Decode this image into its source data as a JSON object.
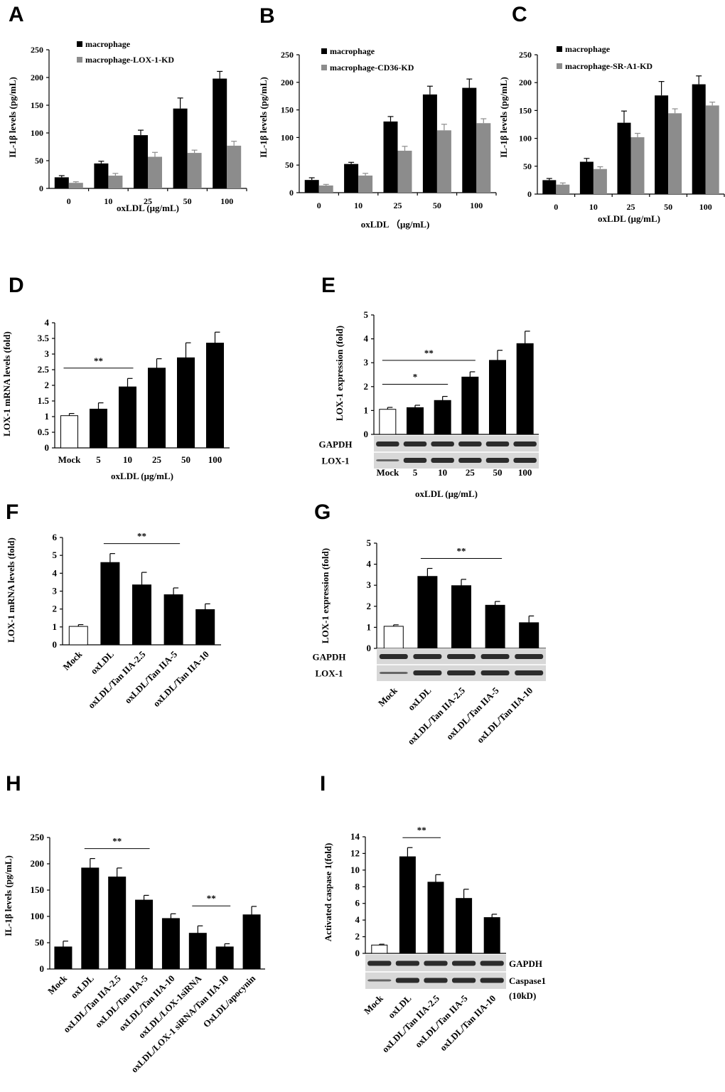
{
  "colors": {
    "black": "#000000",
    "gray": "#8c8c8c",
    "white": "#ffffff",
    "blot_bg": "#d8d8d8",
    "band": "#1a1a1a"
  },
  "chart_data": [
    {
      "id": "A",
      "type": "bar",
      "panel_label": "A",
      "ylabel": "IL-1β levels (pg/mL)",
      "xlabel": "oxLDL (μg/mL)",
      "categories": [
        "0",
        "10",
        "25",
        "50",
        "100"
      ],
      "ylim": [
        0,
        250
      ],
      "yticks": [
        "0",
        "50",
        "100",
        "150",
        "200",
        "250"
      ],
      "series": [
        {
          "name": "macrophage",
          "color": "#000000",
          "values": [
            20,
            45,
            96,
            144,
            198
          ],
          "errors": [
            3,
            4,
            9,
            19,
            13
          ]
        },
        {
          "name": "macrophage-LOX-1-KD",
          "color": "#8c8c8c",
          "values": [
            10,
            23,
            57,
            64,
            77
          ],
          "errors": [
            2,
            4,
            8,
            5,
            8
          ]
        }
      ]
    },
    {
      "id": "B",
      "type": "bar",
      "panel_label": "B",
      "ylabel": "IL-1β levels (pg/mL)",
      "xlabel": "oxLDL （μg/mL)",
      "categories": [
        "0",
        "10",
        "25",
        "50",
        "100"
      ],
      "ylim": [
        0,
        250
      ],
      "yticks": [
        "0",
        "50",
        "100",
        "150",
        "200",
        "250"
      ],
      "series": [
        {
          "name": "macrophage",
          "color": "#000000",
          "values": [
            23,
            52,
            129,
            178,
            190
          ],
          "errors": [
            4,
            3,
            9,
            15,
            16
          ]
        },
        {
          "name": "macrophage-CD36-KD",
          "color": "#8c8c8c",
          "values": [
            13,
            31,
            76,
            113,
            126
          ],
          "errors": [
            2,
            4,
            8,
            11,
            8
          ]
        }
      ]
    },
    {
      "id": "C",
      "type": "bar",
      "panel_label": "C",
      "ylabel": "IL-1β levels (pg/mL)",
      "xlabel": "oxLDL (μg/mL)",
      "categories": [
        "0",
        "10",
        "25",
        "50",
        "100"
      ],
      "ylim": [
        0,
        250
      ],
      "yticks": [
        "0",
        "50",
        "100",
        "150",
        "200",
        "250"
      ],
      "series": [
        {
          "name": "macrophage",
          "color": "#000000",
          "values": [
            25,
            58,
            128,
            177,
            197
          ],
          "errors": [
            3,
            6,
            21,
            25,
            15
          ]
        },
        {
          "name": "macrophage-SR-A1-KD",
          "color": "#8c8c8c",
          "values": [
            17,
            45,
            102,
            145,
            159
          ],
          "errors": [
            3,
            4,
            7,
            8,
            6
          ]
        }
      ]
    },
    {
      "id": "D",
      "type": "bar",
      "panel_label": "D",
      "ylabel": "LOX-1 mRNA levels (fold)",
      "xlabel": "oxLDL (μg/mL)",
      "categories": [
        "Mock",
        "5",
        "10",
        "25",
        "50",
        "100"
      ],
      "ylim": [
        0,
        4
      ],
      "yticks": [
        "0",
        "0.5",
        "1",
        "1.5",
        "2",
        "2.5",
        "3",
        "3.5",
        "4"
      ],
      "values": [
        1.03,
        1.24,
        1.95,
        2.55,
        2.88,
        3.35
      ],
      "errors": [
        0.07,
        0.2,
        0.27,
        0.3,
        0.48,
        0.35
      ],
      "open_first": true,
      "significance": [
        {
          "from": 0,
          "to": 2,
          "label": "**"
        }
      ]
    },
    {
      "id": "E",
      "type": "bar",
      "panel_label": "E",
      "ylabel": "LOX-1 expression (fold)",
      "xlabel": "oxLDL (μg/mL)",
      "categories": [
        "Mock",
        "5",
        "10",
        "25",
        "50",
        "100"
      ],
      "ylim": [
        0,
        5
      ],
      "yticks": [
        "0",
        "1",
        "2",
        "3",
        "4",
        "5"
      ],
      "values": [
        1.05,
        1.12,
        1.42,
        2.4,
        3.1,
        3.8
      ],
      "errors": [
        0.08,
        0.1,
        0.17,
        0.22,
        0.42,
        0.52
      ],
      "open_first": true,
      "significance": [
        {
          "from": 0,
          "to": 2,
          "label": "*"
        },
        {
          "from": 0,
          "to": 3,
          "label": "**"
        }
      ],
      "blots": [
        "GAPDH",
        "LOX-1"
      ]
    },
    {
      "id": "F",
      "type": "bar",
      "panel_label": "F",
      "ylabel": "LOX-1 mRNA levels (fold)",
      "categories": [
        "Mock",
        "oxLDL",
        "oxLDL/Tan IIA-2.5",
        "oxLDL/Tan IIA-5",
        "oxLDL/Tan IIA-10"
      ],
      "ylim": [
        0,
        6
      ],
      "yticks": [
        "0",
        "1",
        "2",
        "3",
        "4",
        "5",
        "6"
      ],
      "values": [
        1.03,
        4.6,
        3.35,
        2.8,
        1.97
      ],
      "errors": [
        0.1,
        0.5,
        0.7,
        0.38,
        0.32
      ],
      "open_first": true,
      "significance": [
        {
          "from": 1,
          "to": 3,
          "label": "**"
        }
      ]
    },
    {
      "id": "G",
      "type": "bar",
      "panel_label": "G",
      "ylabel": "LOX-1 expression (fold)",
      "categories": [
        "Mock",
        "oxLDL",
        "oxLDL/Tan IIA-2.5",
        "oxLDL/Tan IIA-5",
        "oxLDL/Tan IIA-10"
      ],
      "ylim": [
        0,
        5
      ],
      "yticks": [
        "0",
        "1",
        "2",
        "3",
        "4",
        "5"
      ],
      "values": [
        1.05,
        3.42,
        2.98,
        2.05,
        1.22
      ],
      "errors": [
        0.07,
        0.38,
        0.3,
        0.18,
        0.32
      ],
      "open_first": true,
      "significance": [
        {
          "from": 1,
          "to": 3,
          "label": "**"
        }
      ],
      "blots": [
        "GAPDH",
        "LOX-1"
      ]
    },
    {
      "id": "H",
      "type": "bar",
      "panel_label": "H",
      "ylabel": "IL-1β levels (pg/mL)",
      "categories": [
        "Mock",
        "oxLDL",
        "oxLDL/Tan IIA-2.5",
        "oxLDL/Tan IIA-5",
        "oxLDL/Tan IIA-10",
        "oxLDL/LOX-1siRNA",
        "oxLDL/LOX-1 siRNA/Tan IIA-10",
        "OxLDL/apocynin"
      ],
      "ylim": [
        0,
        250
      ],
      "yticks": [
        "0",
        "50",
        "100",
        "150",
        "200",
        "250"
      ],
      "values": [
        42,
        192,
        175,
        131,
        96,
        68,
        42,
        103
      ],
      "errors": [
        11,
        18,
        17,
        9,
        9,
        14,
        6,
        16
      ],
      "significance": [
        {
          "from": 1,
          "to": 3,
          "label": "**"
        },
        {
          "from": 5,
          "to": 6,
          "label": "**"
        }
      ]
    },
    {
      "id": "I",
      "type": "bar",
      "panel_label": "I",
      "ylabel": "Activated caspase 1(fold)",
      "categories": [
        "Mock",
        "oxLDL",
        "oxLDL/Tan IIA-2.5",
        "oxLDL/Tan IIA-5",
        "oxLDL/Tan IIA-10"
      ],
      "ylim": [
        0,
        14
      ],
      "yticks": [
        "0",
        "2",
        "4",
        "6",
        "8",
        "10",
        "12",
        "14"
      ],
      "values": [
        1.0,
        11.6,
        8.55,
        6.6,
        4.3
      ],
      "errors": [
        0.1,
        1.1,
        0.9,
        1.1,
        0.4
      ],
      "open_first": true,
      "significance": [
        {
          "from": 1,
          "to": 2,
          "label": "**"
        }
      ],
      "blots": [
        "GAPDH",
        "Caspase1",
        "(10kD)"
      ]
    }
  ]
}
